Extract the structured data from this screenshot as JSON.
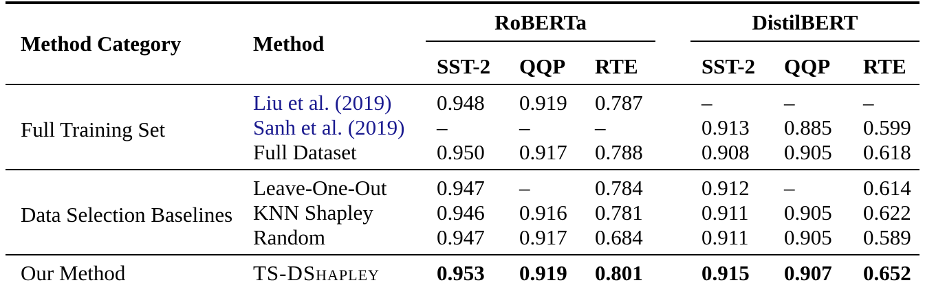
{
  "table": {
    "header": {
      "col1": "Method Category",
      "col2": "Method",
      "groups": [
        {
          "label": "RoBERTa"
        },
        {
          "label": "DistilBERT"
        }
      ],
      "subcols": [
        "SST-2",
        "QQP",
        "RTE"
      ]
    },
    "sections": [
      {
        "category": "Full Training Set",
        "rows": [
          {
            "method": "Liu et al. (2019)",
            "citation": true,
            "values": [
              "0.948",
              "0.919",
              "0.787",
              "–",
              "–",
              "–"
            ]
          },
          {
            "method": "Sanh et al. (2019)",
            "citation": true,
            "values": [
              "–",
              "–",
              "–",
              "0.913",
              "0.885",
              "0.599"
            ]
          },
          {
            "method": "Full Dataset",
            "values": [
              "0.950",
              "0.917",
              "0.788",
              "0.908",
              "0.905",
              "0.618"
            ]
          }
        ]
      },
      {
        "category": "Data Selection Baselines",
        "rows": [
          {
            "method": "Leave-One-Out",
            "values": [
              "0.947",
              "–",
              "0.784",
              "0.912",
              "–",
              "0.614"
            ]
          },
          {
            "method": "KNN Shapley",
            "values": [
              "0.946",
              "0.916",
              "0.781",
              "0.911",
              "0.905",
              "0.622"
            ]
          },
          {
            "method": "Random",
            "values": [
              "0.947",
              "0.917",
              "0.684",
              "0.911",
              "0.905",
              "0.589"
            ]
          }
        ]
      },
      {
        "category": "Our Method",
        "rows": [
          {
            "method": "TS-DShapley",
            "smallcaps": true,
            "bold": true,
            "values": [
              "0.953",
              "0.919",
              "0.801",
              "0.915",
              "0.907",
              "0.652"
            ]
          }
        ]
      }
    ],
    "colors": {
      "citation": "#1a1a8f"
    }
  }
}
